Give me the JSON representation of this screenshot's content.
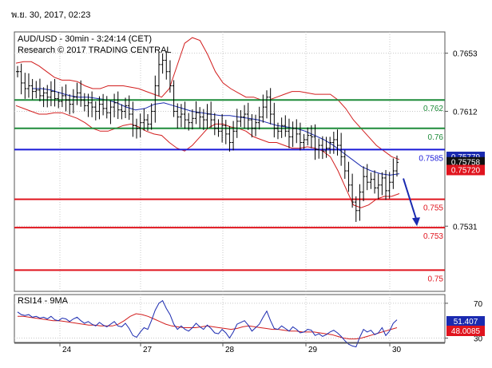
{
  "header": {
    "timestamp": "พ.ย. 30, 2017, 02:23"
  },
  "chart_data": [
    {
      "type": "line",
      "title": "AUD/USD - 30min - 3:24:14 (CET)",
      "subtitle": "Research © 2017 TRADING CENTRAL",
      "ylim": [
        0.7485,
        0.7668
      ],
      "y_ticks": [
        "0.7653",
        "0.7612",
        "0.7531"
      ],
      "x_ticks": [
        "24",
        "27",
        "28",
        "29",
        "30"
      ],
      "grid": true,
      "price_close_approx": [
        0.764,
        0.7632,
        0.7628,
        0.763,
        0.7626,
        0.7627,
        0.7623,
        0.7625,
        0.7622,
        0.7626,
        0.7621,
        0.7619,
        0.7623,
        0.762,
        0.7617,
        0.7622,
        0.7625,
        0.762,
        0.7616,
        0.7618,
        0.7615,
        0.7612,
        0.7617,
        0.7614,
        0.7611,
        0.7615,
        0.7618,
        0.7613,
        0.7612,
        0.7616,
        0.761,
        0.7602,
        0.76,
        0.7604,
        0.7606,
        0.7603,
        0.7612,
        0.763,
        0.7645,
        0.7648,
        0.764,
        0.763,
        0.7612,
        0.7608,
        0.761,
        0.7606,
        0.7604,
        0.7607,
        0.7611,
        0.7608,
        0.7606,
        0.761,
        0.7606,
        0.76,
        0.7598,
        0.7602,
        0.7596,
        0.759,
        0.7598,
        0.7605,
        0.7608,
        0.761,
        0.7606,
        0.76,
        0.7604,
        0.7608,
        0.7615,
        0.7622,
        0.761,
        0.76,
        0.7598,
        0.7602,
        0.7598,
        0.7594,
        0.76,
        0.7596,
        0.759,
        0.7592,
        0.7595,
        0.7594,
        0.7585,
        0.7588,
        0.7584,
        0.7586,
        0.759,
        0.7592,
        0.7588,
        0.758,
        0.757,
        0.756,
        0.7548,
        0.7542,
        0.7555,
        0.7566,
        0.7562,
        0.7564,
        0.7558,
        0.756,
        0.7565,
        0.7556,
        0.7562,
        0.757,
        0.7576
      ],
      "bollinger_upper_approx": [
        0.7646,
        0.7647,
        0.7647,
        0.7644,
        0.764,
        0.7636,
        0.7634,
        0.7634,
        0.7633,
        0.763,
        0.7628,
        0.7628,
        0.763,
        0.763,
        0.763,
        0.7629,
        0.7628,
        0.7626,
        0.7624,
        0.7622,
        0.7628,
        0.7644,
        0.766,
        0.7664,
        0.7662,
        0.7652,
        0.764,
        0.7632,
        0.7628,
        0.7625,
        0.7622,
        0.7622,
        0.762,
        0.762,
        0.7622,
        0.7624,
        0.7626,
        0.7626,
        0.7625,
        0.7624,
        0.7624,
        0.7624,
        0.762,
        0.7614,
        0.7606,
        0.76,
        0.7594,
        0.7588,
        0.7584,
        0.758,
        0.7578
      ],
      "bollinger_lower_approx": [
        0.7616,
        0.7614,
        0.7612,
        0.761,
        0.761,
        0.7611,
        0.7611,
        0.7609,
        0.7607,
        0.7604,
        0.76,
        0.7598,
        0.7598,
        0.76,
        0.7602,
        0.7603,
        0.7601,
        0.7598,
        0.7596,
        0.7595,
        0.759,
        0.7586,
        0.7584,
        0.7588,
        0.7594,
        0.76,
        0.7603,
        0.7603,
        0.7601,
        0.76,
        0.7598,
        0.7594,
        0.7592,
        0.759,
        0.759,
        0.7588,
        0.7586,
        0.7586,
        0.7587,
        0.7586,
        0.7584,
        0.758,
        0.757,
        0.7558,
        0.7546,
        0.7544,
        0.7546,
        0.755,
        0.7552,
        0.7552,
        0.7554
      ],
      "ma_approx": [
        0.7628,
        0.7628,
        0.7627,
        0.7625,
        0.7623,
        0.7622,
        0.7622,
        0.7621,
        0.762,
        0.7618,
        0.7615,
        0.7613,
        0.7614,
        0.7617,
        0.7618,
        0.7616,
        0.7614,
        0.7612,
        0.7611,
        0.761,
        0.7609,
        0.7609,
        0.7608,
        0.7607,
        0.7606,
        0.7604,
        0.7602,
        0.7601,
        0.76,
        0.7598,
        0.7595,
        0.7592,
        0.7588,
        0.7583,
        0.7578,
        0.7573,
        0.757,
        0.7568,
        0.7567,
        0.7568
      ],
      "levels": [
        {
          "value": 0.762,
          "label": "0.762",
          "color": "#1e8c3a"
        },
        {
          "value": 0.76,
          "label": "0.76",
          "color": "#1e8c3a"
        },
        {
          "value": 0.7585,
          "label": "0.7585",
          "color": "#1a1ad8"
        },
        {
          "value": 0.755,
          "label": "0.755",
          "color": "#e0141e"
        },
        {
          "value": 0.753,
          "label": "0.753",
          "color": "#e0141e"
        },
        {
          "value": 0.75,
          "label": "0.75",
          "color": "#e0141e"
        }
      ],
      "price_badges": [
        {
          "value": 0.75779,
          "label": "0.75779",
          "bg": "#1a2ab0",
          "fg": "#ffffff"
        },
        {
          "value": 0.75758,
          "label": "0.75758",
          "bg": "#111111",
          "fg": "#ffffff"
        },
        {
          "value": 0.7572,
          "label": "0.75720",
          "bg": "#e0141e",
          "fg": "#ffffff"
        }
      ],
      "forecast_arrow": {
        "from": 0.7577,
        "to": 0.7531,
        "color": "#1a2ab0"
      }
    },
    {
      "type": "line",
      "title": "RSI14 - 9MA",
      "ylim": [
        25,
        80
      ],
      "y_ticks": [
        "70",
        "30"
      ],
      "rsi_approx": [
        60,
        57,
        56,
        57,
        54,
        55,
        53,
        54,
        52,
        55,
        51,
        50,
        53,
        52,
        49,
        52,
        54,
        50,
        47,
        49,
        46,
        44,
        48,
        45,
        43,
        46,
        49,
        44,
        43,
        47,
        41,
        33,
        31,
        37,
        42,
        40,
        50,
        62,
        70,
        73,
        64,
        57,
        46,
        40,
        44,
        40,
        38,
        42,
        47,
        43,
        40,
        45,
        41,
        36,
        35,
        40,
        36,
        30,
        37,
        46,
        48,
        50,
        45,
        38,
        42,
        46,
        54,
        61,
        50,
        41,
        40,
        44,
        41,
        38,
        43,
        40,
        36,
        37,
        40,
        39,
        33,
        35,
        32,
        34,
        37,
        39,
        36,
        32,
        27,
        23,
        21,
        20,
        31,
        40,
        37,
        39,
        34,
        36,
        42,
        33,
        38,
        47,
        51
      ],
      "signal_approx": [
        55,
        55,
        54,
        53,
        52,
        51,
        50,
        50,
        49,
        48,
        47,
        46,
        45,
        45,
        44,
        44,
        44,
        46,
        50,
        55,
        58,
        57,
        55,
        52,
        49,
        46,
        44,
        43,
        42,
        42,
        42,
        43,
        44,
        43,
        42,
        41,
        40,
        41,
        43,
        44,
        43,
        42,
        41,
        40,
        40,
        39,
        38,
        38,
        37,
        37,
        37,
        36,
        35,
        34,
        32,
        30,
        29,
        29,
        30,
        32,
        34,
        36,
        38,
        40,
        42
      ],
      "badges": [
        {
          "value": 51.407,
          "label": "51.407",
          "bg": "#1a2ab0",
          "fg": "#ffffff"
        },
        {
          "value": 48.0085,
          "label": "48.0085",
          "bg": "#e0141e",
          "fg": "#ffffff"
        }
      ]
    }
  ]
}
